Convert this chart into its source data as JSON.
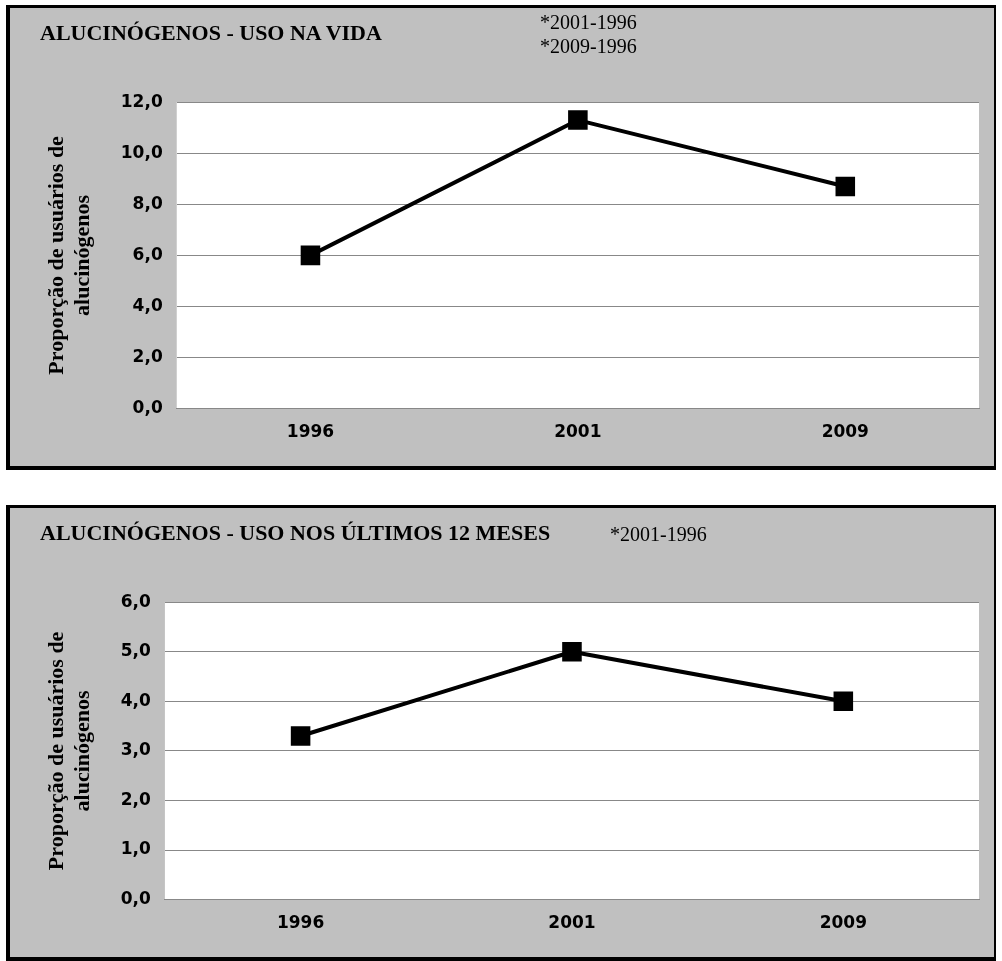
{
  "chart_data": [
    {
      "type": "line",
      "title": "ALUCINÓGENOS - USO NA VIDA",
      "ylabel": "Proporção de usuários de alucinógenos",
      "annotations": [
        "*2001-1996",
        "*2009-1996"
      ],
      "categories": [
        "1996",
        "2001",
        "2009"
      ],
      "series": [
        {
          "color": "#000000",
          "values": [
            6.0,
            11.3,
            8.7
          ]
        }
      ],
      "ylim": [
        0,
        12
      ],
      "yticks": [
        {
          "value": 0,
          "label": "0,0"
        },
        {
          "value": 2,
          "label": "2,0"
        },
        {
          "value": 4,
          "label": "4,0"
        },
        {
          "value": 6,
          "label": "6,0"
        },
        {
          "value": 8,
          "label": "8,0"
        },
        {
          "value": 10,
          "label": "10,0"
        },
        {
          "value": 12,
          "label": "12,0"
        }
      ],
      "grid": "y",
      "legend": false,
      "marker": "square",
      "line_style": "solid"
    },
    {
      "type": "line",
      "title": "ALUCINÓGENOS - USO NOS ÚLTIMOS 12 MESES",
      "ylabel": "Proporção de usuários de alucinógenos",
      "annotations": [
        "*2001-1996"
      ],
      "categories": [
        "1996",
        "2001",
        "2009"
      ],
      "series": [
        {
          "color": "#000000",
          "values": [
            3.3,
            5.0,
            4.0
          ]
        }
      ],
      "ylim": [
        0,
        6
      ],
      "yticks": [
        {
          "value": 0,
          "label": "0,0"
        },
        {
          "value": 1,
          "label": "1,0"
        },
        {
          "value": 2,
          "label": "2,0"
        },
        {
          "value": 3,
          "label": "3,0"
        },
        {
          "value": 4,
          "label": "4,0"
        },
        {
          "value": 5,
          "label": "5,0"
        },
        {
          "value": 6,
          "label": "6,0"
        }
      ],
      "grid": "y",
      "legend": false,
      "marker": "square",
      "line_style": "solid"
    }
  ]
}
